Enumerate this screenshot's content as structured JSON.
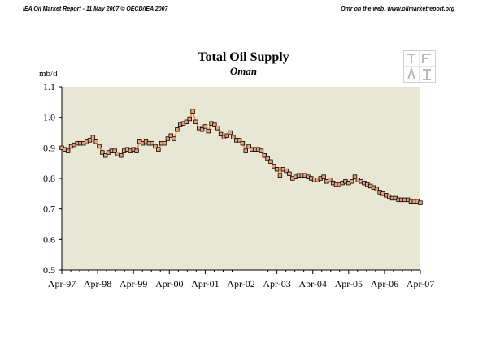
{
  "header": {
    "left_text": "IEA Oil Market Report - 11 May 2007     © OECD/IEA 2007",
    "right_text": "Omr on the web: www.oilmarketreport.org"
  },
  "logo": {
    "text": "IEA"
  },
  "colors": {
    "plot_bg": "#e8e7d4",
    "line": "#ff7a1a",
    "marker_fill": "#e9a37c",
    "marker_edge": "#000000",
    "axis": "#000000"
  },
  "chart_data": {
    "type": "line",
    "title": "Total Oil Supply",
    "subtitle": "Oman",
    "ylabel": "mb/d",
    "xlabel": "",
    "ylim": [
      0.5,
      1.1
    ],
    "yticks": [
      0.5,
      0.6,
      0.7,
      0.8,
      0.9,
      1.0,
      1.1
    ],
    "ytick_labels": [
      "0.5",
      "0.6",
      "0.7",
      "0.8",
      "0.9",
      "1.0",
      "1.1"
    ],
    "xtick_labels": [
      "Apr-97",
      "Apr-98",
      "Apr-99",
      "Apr-00",
      "Apr-01",
      "Apr-02",
      "Apr-03",
      "Apr-04",
      "Apr-05",
      "Apr-06",
      "Apr-07"
    ],
    "x_start": "Apr-97",
    "x_end": "Apr-07",
    "grid": false,
    "legend": "none",
    "series": [
      {
        "values": [
          0.9,
          0.895,
          0.89,
          0.905,
          0.91,
          0.915,
          0.915,
          0.915,
          0.92,
          0.925,
          0.935,
          0.92,
          0.905,
          0.885,
          0.875,
          0.885,
          0.89,
          0.89,
          0.88,
          0.875,
          0.89,
          0.895,
          0.89,
          0.895,
          0.89,
          0.92,
          0.915,
          0.92,
          0.915,
          0.915,
          0.905,
          0.895,
          0.915,
          0.915,
          0.93,
          0.94,
          0.93,
          0.96,
          0.975,
          0.98,
          0.985,
          0.995,
          1.02,
          0.985,
          0.965,
          0.96,
          0.97,
          0.955,
          0.98,
          0.975,
          0.965,
          0.945,
          0.935,
          0.94,
          0.95,
          0.935,
          0.925,
          0.925,
          0.915,
          0.89,
          0.905,
          0.895,
          0.895,
          0.895,
          0.89,
          0.875,
          0.865,
          0.855,
          0.84,
          0.83,
          0.81,
          0.83,
          0.825,
          0.815,
          0.8,
          0.805,
          0.81,
          0.81,
          0.81,
          0.805,
          0.8,
          0.795,
          0.795,
          0.8,
          0.805,
          0.79,
          0.795,
          0.785,
          0.78,
          0.78,
          0.785,
          0.79,
          0.785,
          0.79,
          0.805,
          0.795,
          0.79,
          0.785,
          0.78,
          0.775,
          0.77,
          0.765,
          0.755,
          0.75,
          0.745,
          0.74,
          0.735,
          0.735,
          0.73,
          0.73,
          0.73,
          0.73,
          0.725,
          0.725,
          0.725,
          0.72
        ]
      }
    ]
  }
}
